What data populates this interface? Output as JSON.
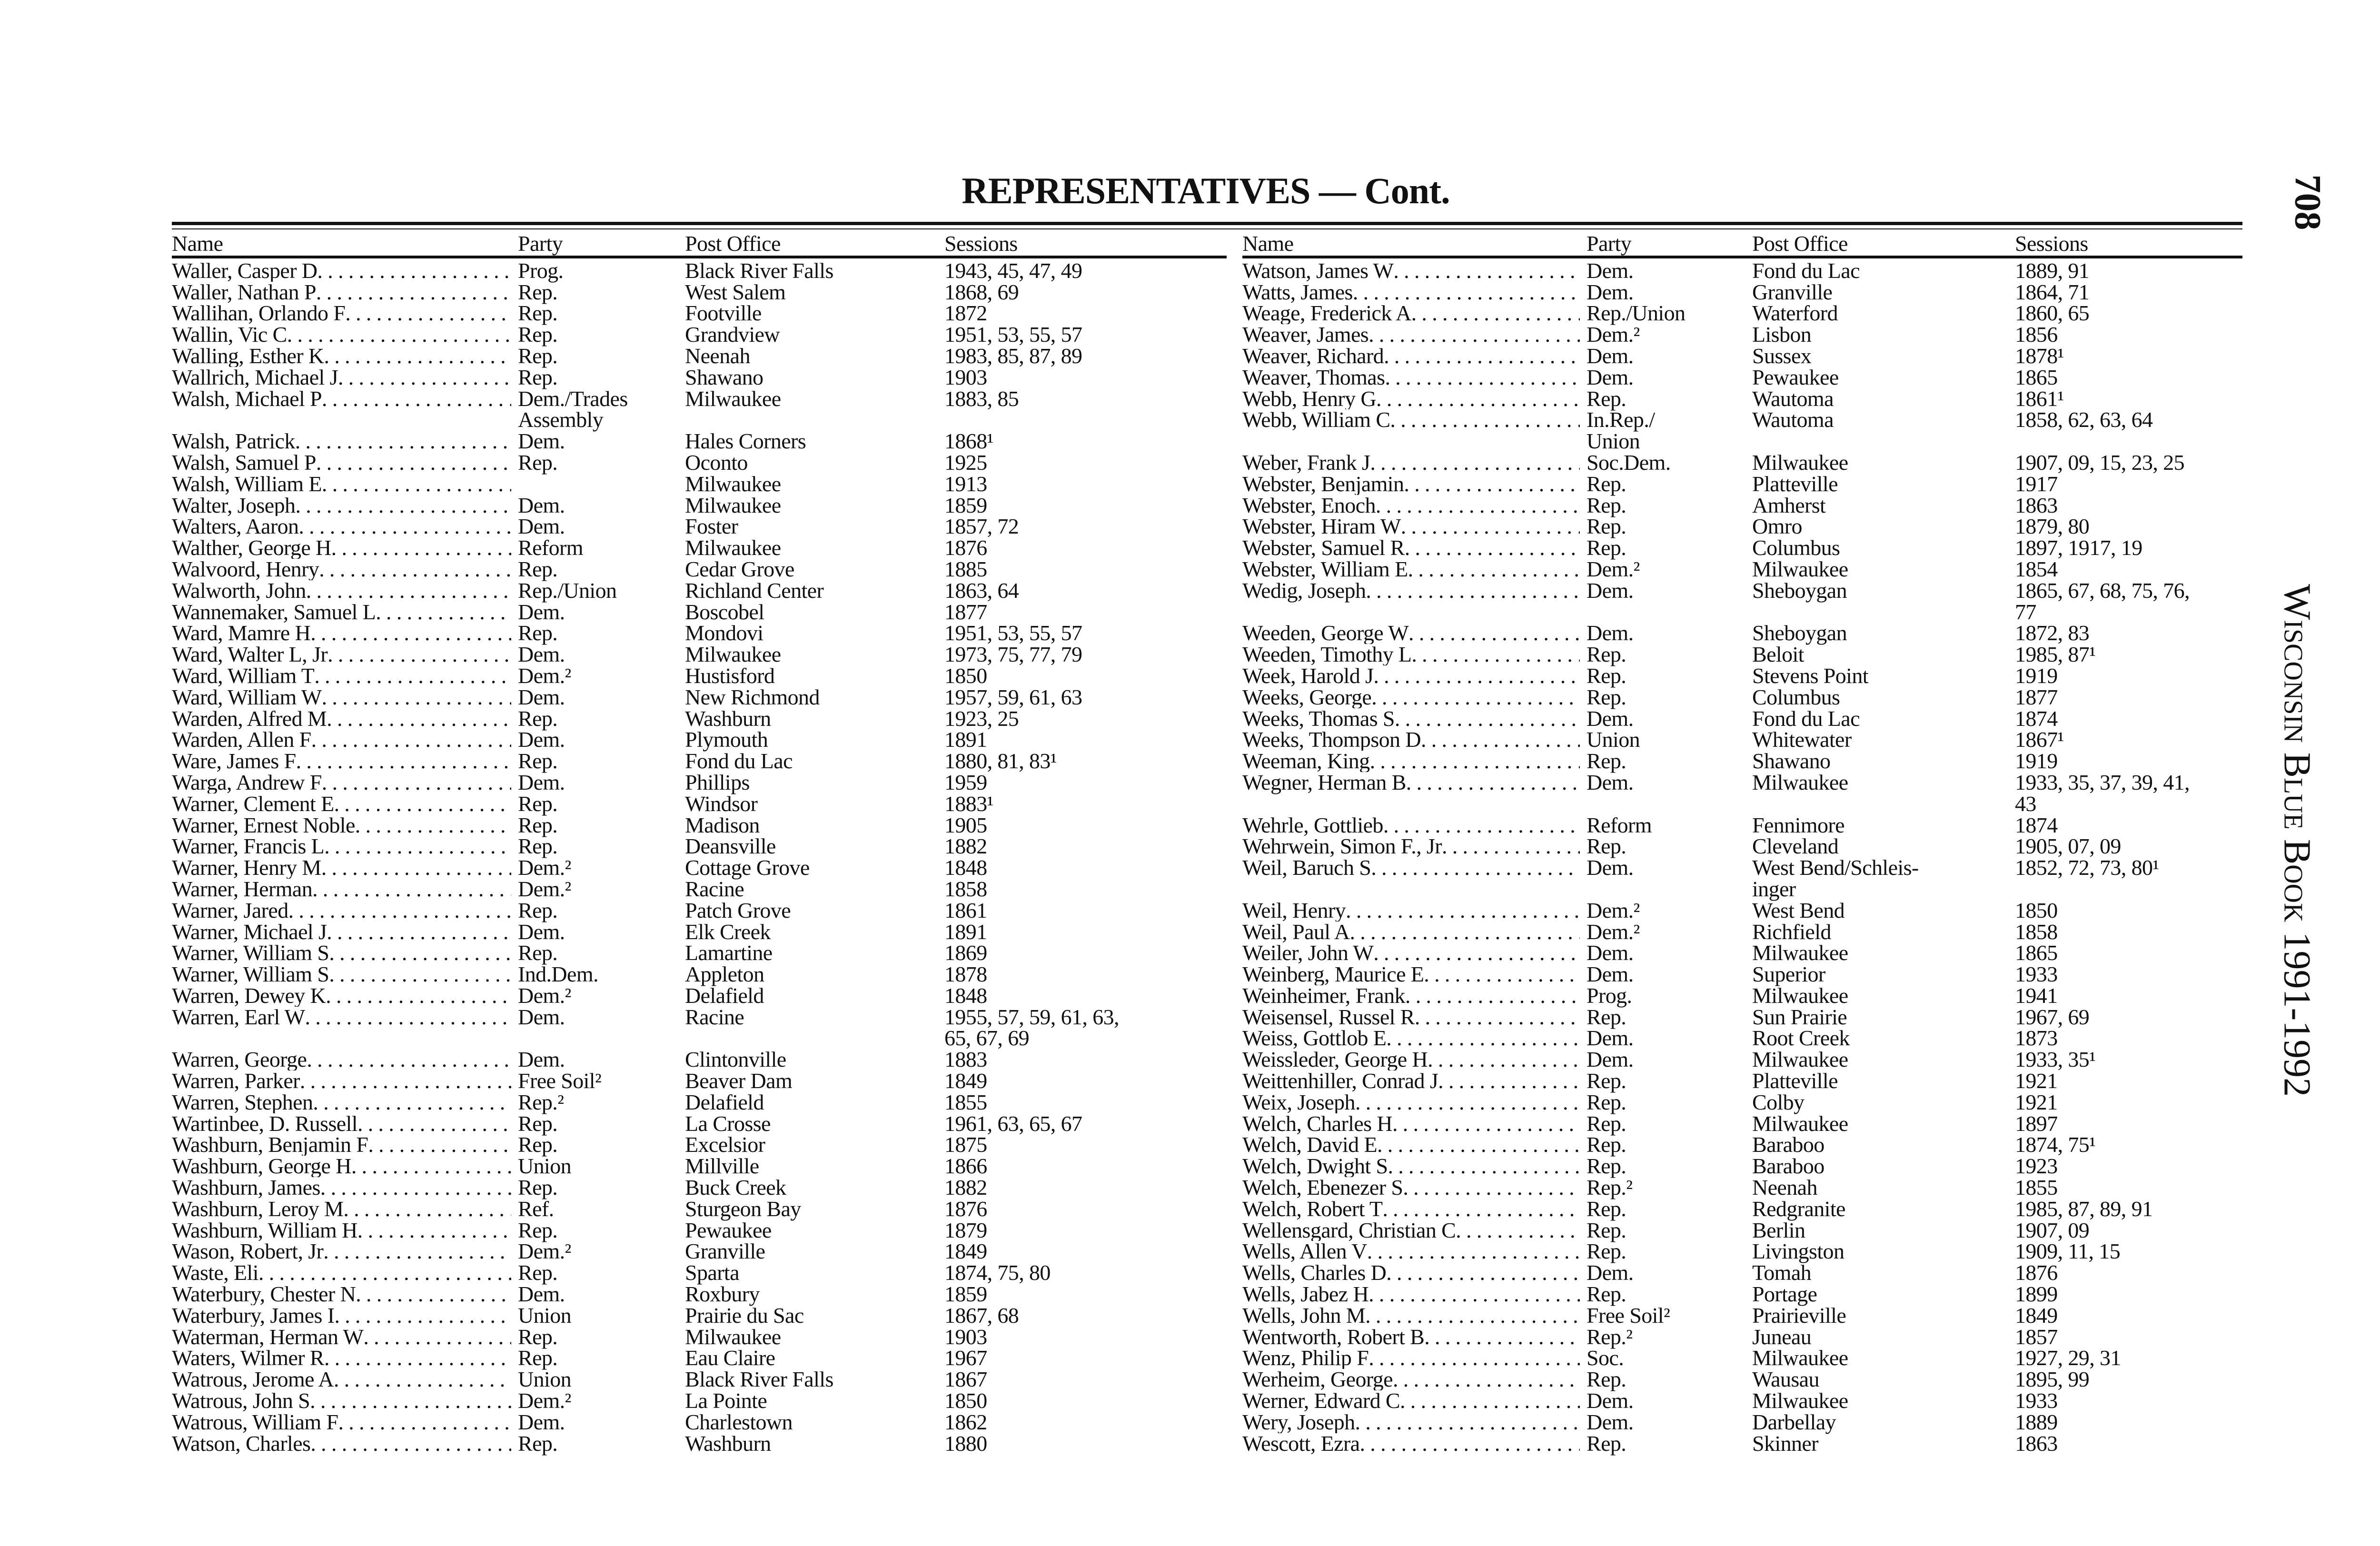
{
  "title": "REPRESENTATIVES — Cont.",
  "page_number": "708",
  "running_head": "Wisconsin Blue Book 1991-1992",
  "headers": {
    "name": "Name",
    "party": "Party",
    "post_office": "Post Office",
    "sessions": "Sessions"
  },
  "left": [
    [
      "Waller, Casper D",
      "Prog.",
      "Black River Falls",
      "1943, 45, 47, 49"
    ],
    [
      "Waller, Nathan P",
      "Rep.",
      "West Salem",
      "1868, 69"
    ],
    [
      "Wallihan, Orlando F",
      "Rep.",
      "Footville",
      "1872"
    ],
    [
      "Wallin, Vic C",
      "Rep.",
      "Grandview",
      "1951, 53, 55, 57"
    ],
    [
      "Walling, Esther K",
      "Rep.",
      "Neenah",
      "1983, 85, 87, 89"
    ],
    [
      "Wallrich, Michael J",
      "Rep.",
      "Shawano",
      "1903"
    ],
    [
      "Walsh, Michael P",
      "Dem./Trades\nAssembly",
      "Milwaukee",
      "1883, 85"
    ],
    [
      "Walsh, Patrick",
      "Dem.",
      "Hales Corners",
      "1868¹"
    ],
    [
      "Walsh, Samuel P",
      "Rep.",
      "Oconto",
      "1925"
    ],
    [
      "Walsh, William E",
      "",
      "Milwaukee",
      "1913"
    ],
    [
      "Walter, Joseph",
      "Dem.",
      "Milwaukee",
      "1859"
    ],
    [
      "Walters, Aaron",
      "Dem.",
      "Foster",
      "1857, 72"
    ],
    [
      "Walther, George H",
      "Reform",
      "Milwaukee",
      "1876"
    ],
    [
      "Walvoord, Henry",
      "Rep.",
      "Cedar Grove",
      "1885"
    ],
    [
      "Walworth, John",
      "Rep./Union",
      "Richland Center",
      "1863, 64"
    ],
    [
      "Wannemaker, Samuel L",
      "Dem.",
      "Boscobel",
      "1877"
    ],
    [
      "Ward, Mamre H",
      "Rep.",
      "Mondovi",
      "1951, 53, 55, 57"
    ],
    [
      "Ward, Walter L, Jr",
      "Dem.",
      "Milwaukee",
      "1973, 75, 77, 79"
    ],
    [
      "Ward, William T",
      "Dem.²",
      "Hustisford",
      "1850"
    ],
    [
      "Ward, William W",
      "Dem.",
      "New Richmond",
      "1957, 59, 61, 63"
    ],
    [
      "Warden, Alfred M",
      "Rep.",
      "Washburn",
      "1923, 25"
    ],
    [
      "Warden, Allen F",
      "Dem.",
      "Plymouth",
      "1891"
    ],
    [
      "Ware, James F",
      "Rep.",
      "Fond du Lac",
      "1880, 81, 83¹"
    ],
    [
      "Warga, Andrew F",
      "Dem.",
      "Phillips",
      "1959"
    ],
    [
      "Warner, Clement E",
      "Rep.",
      "Windsor",
      "1883¹"
    ],
    [
      "Warner, Ernest Noble",
      "Rep.",
      "Madison",
      "1905"
    ],
    [
      "Warner, Francis L",
      "Rep.",
      "Deansville",
      "1882"
    ],
    [
      "Warner, Henry M",
      "Dem.²",
      "Cottage Grove",
      "1848"
    ],
    [
      "Warner, Herman",
      "Dem.²",
      "Racine",
      "1858"
    ],
    [
      "Warner, Jared",
      "Rep.",
      "Patch Grove",
      "1861"
    ],
    [
      "Warner, Michael J",
      "Dem.",
      "Elk Creek",
      "1891"
    ],
    [
      "Warner, William S",
      "Rep.",
      "Lamartine",
      "1869"
    ],
    [
      "Warner, William S",
      "Ind.Dem.",
      "Appleton",
      "1878"
    ],
    [
      "Warren, Dewey K",
      "Dem.²",
      "Delafield",
      "1848"
    ],
    [
      "Warren, Earl W",
      "Dem.",
      "Racine",
      "1955, 57, 59, 61, 63,\n65, 67, 69"
    ],
    [
      "Warren, George",
      "Dem.",
      "Clintonville",
      "1883"
    ],
    [
      "Warren, Parker",
      "Free Soil²",
      "Beaver Dam",
      "1849"
    ],
    [
      "Warren, Stephen",
      "Rep.²",
      "Delafield",
      "1855"
    ],
    [
      "Wartinbee, D. Russell",
      "Rep.",
      "La Crosse",
      "1961, 63, 65, 67"
    ],
    [
      "Washburn, Benjamin F",
      "Rep.",
      "Excelsior",
      "1875"
    ],
    [
      "Washburn, George H",
      "Union",
      "Millville",
      "1866"
    ],
    [
      "Washburn, James",
      "Rep.",
      "Buck Creek",
      "1882"
    ],
    [
      "Washburn, Leroy M",
      "Ref.",
      "Sturgeon Bay",
      "1876"
    ],
    [
      "Washburn, William H",
      "Rep.",
      "Pewaukee",
      "1879"
    ],
    [
      "Wason, Robert, Jr",
      "Dem.²",
      "Granville",
      "1849"
    ],
    [
      "Waste, Eli",
      "Rep.",
      "Sparta",
      "1874, 75, 80"
    ],
    [
      "Waterbury, Chester N",
      "Dem.",
      "Roxbury",
      "1859"
    ],
    [
      "Waterbury, James I",
      "Union",
      "Prairie du Sac",
      "1867, 68"
    ],
    [
      "Waterman, Herman W",
      "Rep.",
      "Milwaukee",
      "1903"
    ],
    [
      "Waters, Wilmer R",
      "Rep.",
      "Eau Claire",
      "1967"
    ],
    [
      "Watrous, Jerome A",
      "Union",
      "Black River Falls",
      "1867"
    ],
    [
      "Watrous, John S",
      "Dem.²",
      "La Pointe",
      "1850"
    ],
    [
      "Watrous, William F",
      "Dem.",
      "Charlestown",
      "1862"
    ],
    [
      "Watson, Charles",
      "Rep.",
      "Washburn",
      "1880"
    ]
  ],
  "right": [
    [
      "Watson, James W",
      "Dem.",
      "Fond du Lac",
      "1889, 91"
    ],
    [
      "Watts, James",
      "Dem.",
      "Granville",
      "1864, 71"
    ],
    [
      "Weage, Frederick A",
      "Rep./Union",
      "Waterford",
      "1860, 65"
    ],
    [
      "Weaver, James",
      "Dem.²",
      "Lisbon",
      "1856"
    ],
    [
      "Weaver, Richard",
      "Dem.",
      "Sussex",
      "1878¹"
    ],
    [
      "Weaver, Thomas",
      "Dem.",
      "Pewaukee",
      "1865"
    ],
    [
      "Webb, Henry G",
      "Rep.",
      "Wautoma",
      "1861¹"
    ],
    [
      "Webb, William C",
      "In.Rep./\nUnion",
      "Wautoma",
      "1858, 62, 63, 64"
    ],
    [
      "Weber, Frank J",
      "Soc.Dem.",
      "Milwaukee",
      "1907, 09, 15, 23, 25"
    ],
    [
      "Webster, Benjamin",
      "Rep.",
      "Platteville",
      "1917"
    ],
    [
      "Webster, Enoch",
      "Rep.",
      "Amherst",
      "1863"
    ],
    [
      "Webster, Hiram W",
      "Rep.",
      "Omro",
      "1879, 80"
    ],
    [
      "Webster, Samuel R",
      "Rep.",
      "Columbus",
      "1897, 1917, 19"
    ],
    [
      "Webster, William E",
      "Dem.²",
      "Milwaukee",
      "1854"
    ],
    [
      "Wedig, Joseph",
      "Dem.",
      "Sheboygan",
      "1865, 67, 68, 75, 76,\n77"
    ],
    [
      "Weeden, George W",
      "Dem.",
      "Sheboygan",
      "1872, 83"
    ],
    [
      "Weeden, Timothy L",
      "Rep.",
      "Beloit",
      "1985, 87¹"
    ],
    [
      "Week, Harold J",
      "Rep.",
      "Stevens Point",
      "1919"
    ],
    [
      "Weeks, George",
      "Rep.",
      "Columbus",
      "1877"
    ],
    [
      "Weeks, Thomas S",
      "Dem.",
      "Fond du Lac",
      "1874"
    ],
    [
      "Weeks, Thompson D",
      "Union",
      "Whitewater",
      "1867¹"
    ],
    [
      "Weeman, King",
      "Rep.",
      "Shawano",
      "1919"
    ],
    [
      "Wegner, Herman B",
      "Dem.",
      "Milwaukee",
      "1933, 35, 37, 39, 41,\n43"
    ],
    [
      "Wehrle, Gottlieb",
      "Reform",
      "Fennimore",
      "1874"
    ],
    [
      "Wehrwein, Simon F., Jr",
      "Rep.",
      "Cleveland",
      "1905, 07, 09"
    ],
    [
      "Weil, Baruch S",
      "Dem.",
      "West Bend/Schleis-\ninger",
      "1852, 72, 73, 80¹"
    ],
    [
      "Weil, Henry",
      "Dem.²",
      "West Bend",
      "1850"
    ],
    [
      "Weil, Paul A",
      "Dem.²",
      "Richfield",
      "1858"
    ],
    [
      "Weiler, John W",
      "Dem.",
      "Milwaukee",
      "1865"
    ],
    [
      "Weinberg, Maurice E",
      "Dem.",
      "Superior",
      "1933"
    ],
    [
      "Weinheimer, Frank",
      "Prog.",
      "Milwaukee",
      "1941"
    ],
    [
      "Weisensel, Russel R",
      "Rep.",
      "Sun Prairie",
      "1967, 69"
    ],
    [
      "Weiss, Gottlob E",
      "Dem.",
      "Root Creek",
      "1873"
    ],
    [
      "Weissleder, George H",
      "Dem.",
      "Milwaukee",
      "1933, 35¹"
    ],
    [
      "Weittenhiller, Conrad J",
      "Rep.",
      "Platteville",
      "1921"
    ],
    [
      "Weix, Joseph",
      "Rep.",
      "Colby",
      "1921"
    ],
    [
      "Welch, Charles H",
      "Rep.",
      "Milwaukee",
      "1897"
    ],
    [
      "Welch, David E",
      "Rep.",
      "Baraboo",
      "1874, 75¹"
    ],
    [
      "Welch, Dwight S",
      "Rep.",
      "Baraboo",
      "1923"
    ],
    [
      "Welch, Ebenezer S",
      "Rep.²",
      "Neenah",
      "1855"
    ],
    [
      "Welch, Robert T",
      "Rep.",
      "Redgranite",
      "1985, 87, 89, 91"
    ],
    [
      "Wellensgard, Christian C",
      "Rep.",
      "Berlin",
      "1907, 09"
    ],
    [
      "Wells, Allen V",
      "Rep.",
      "Livingston",
      "1909, 11, 15"
    ],
    [
      "Wells, Charles D",
      "Dem.",
      "Tomah",
      "1876"
    ],
    [
      "Wells, Jabez H",
      "Rep.",
      "Portage",
      "1899"
    ],
    [
      "Wells, John M",
      "Free Soil²",
      "Prairieville",
      "1849"
    ],
    [
      "Wentworth, Robert B",
      "Rep.²",
      "Juneau",
      "1857"
    ],
    [
      "Wenz, Philip F",
      "Soc.",
      "Milwaukee",
      "1927, 29, 31"
    ],
    [
      "Werheim, George",
      "Rep.",
      "Wausau",
      "1895, 99"
    ],
    [
      "Werner, Edward C",
      "Dem.",
      "Milwaukee",
      "1933"
    ],
    [
      "Wery, Joseph",
      "Dem.",
      "Darbellay",
      "1889"
    ],
    [
      "Wescott, Ezra",
      "Rep.",
      "Skinner",
      "1863"
    ]
  ]
}
